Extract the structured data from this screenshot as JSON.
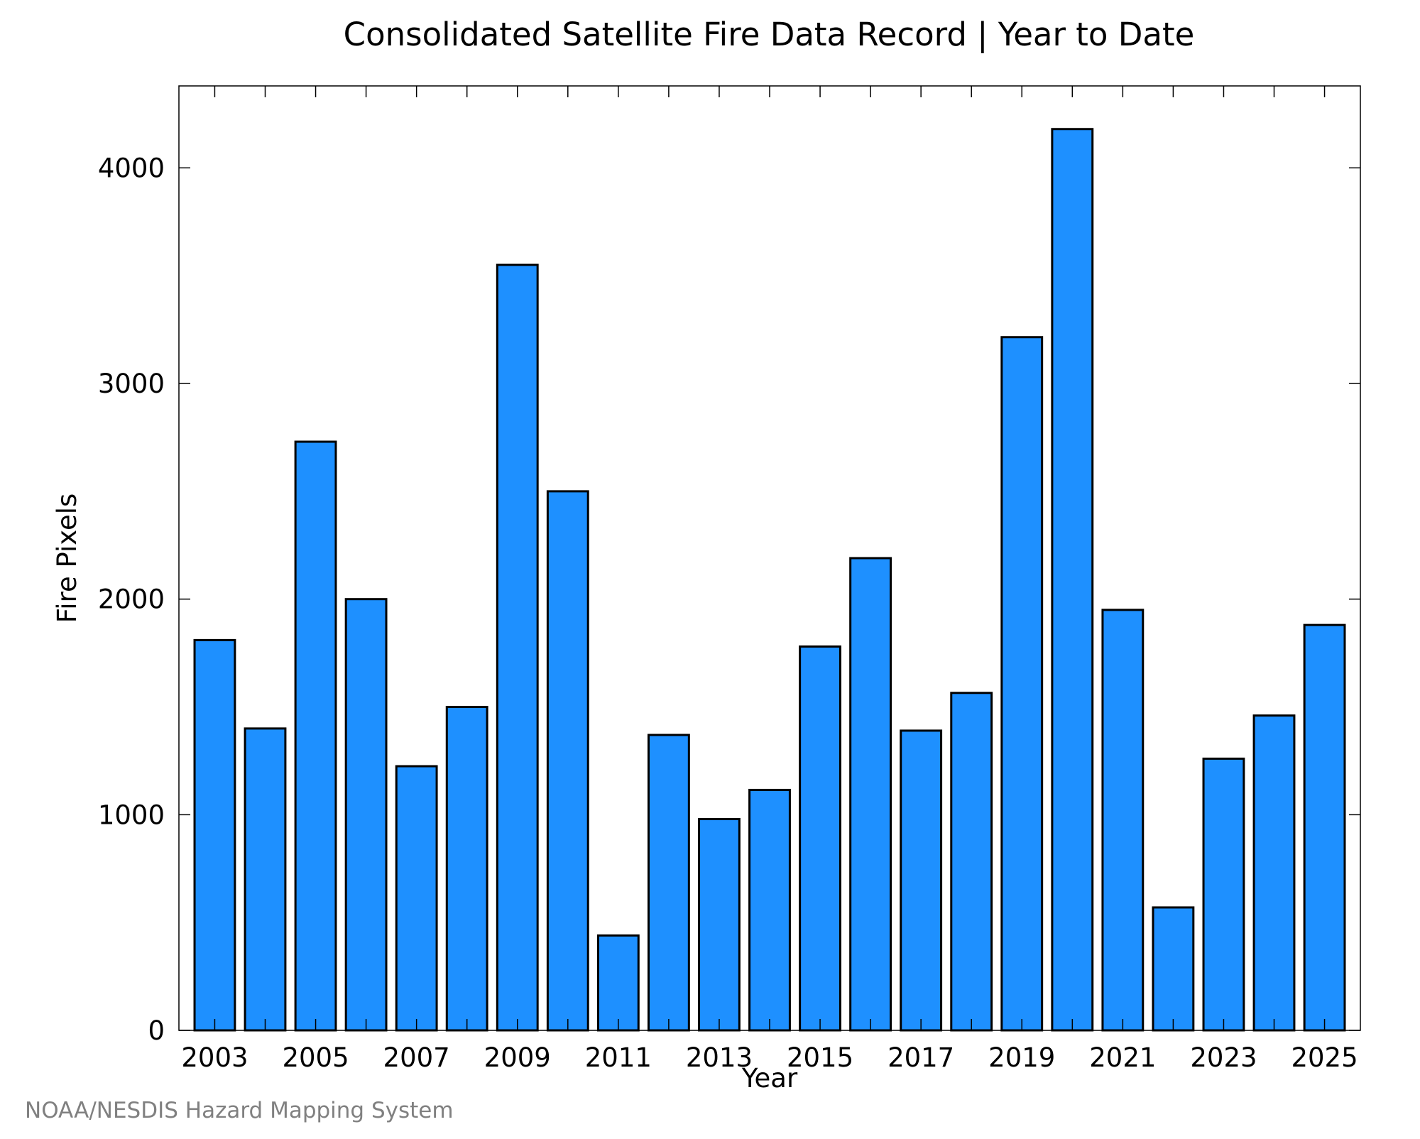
{
  "chart_data": {
    "type": "bar",
    "title": "Consolidated Satellite Fire Data Record | Year to Date",
    "xlabel": "Year",
    "ylabel": "Fire Pixels",
    "categories": [
      "2003",
      "2004",
      "2005",
      "2006",
      "2007",
      "2008",
      "2009",
      "2010",
      "2011",
      "2012",
      "2013",
      "2014",
      "2015",
      "2016",
      "2017",
      "2018",
      "2019",
      "2020",
      "2021",
      "2022",
      "2023",
      "2024",
      "2025"
    ],
    "values": [
      1810,
      1400,
      2730,
      2000,
      1225,
      1500,
      3550,
      2500,
      440,
      1370,
      980,
      1115,
      1780,
      2190,
      1390,
      1565,
      3215,
      4180,
      1950,
      570,
      1260,
      1460,
      1880
    ],
    "x_tick_labels": [
      "2003",
      "2005",
      "2007",
      "2009",
      "2011",
      "2013",
      "2015",
      "2017",
      "2019",
      "2021",
      "2023",
      "2025"
    ],
    "y_ticks": [
      0,
      1000,
      2000,
      3000,
      4000
    ],
    "ylim": [
      0,
      4380
    ],
    "grid": false,
    "bar_color": "#1e90ff",
    "edge_color": "#000000"
  },
  "footer": {
    "credit": "NOAA/NESDIS Hazard Mapping System"
  }
}
